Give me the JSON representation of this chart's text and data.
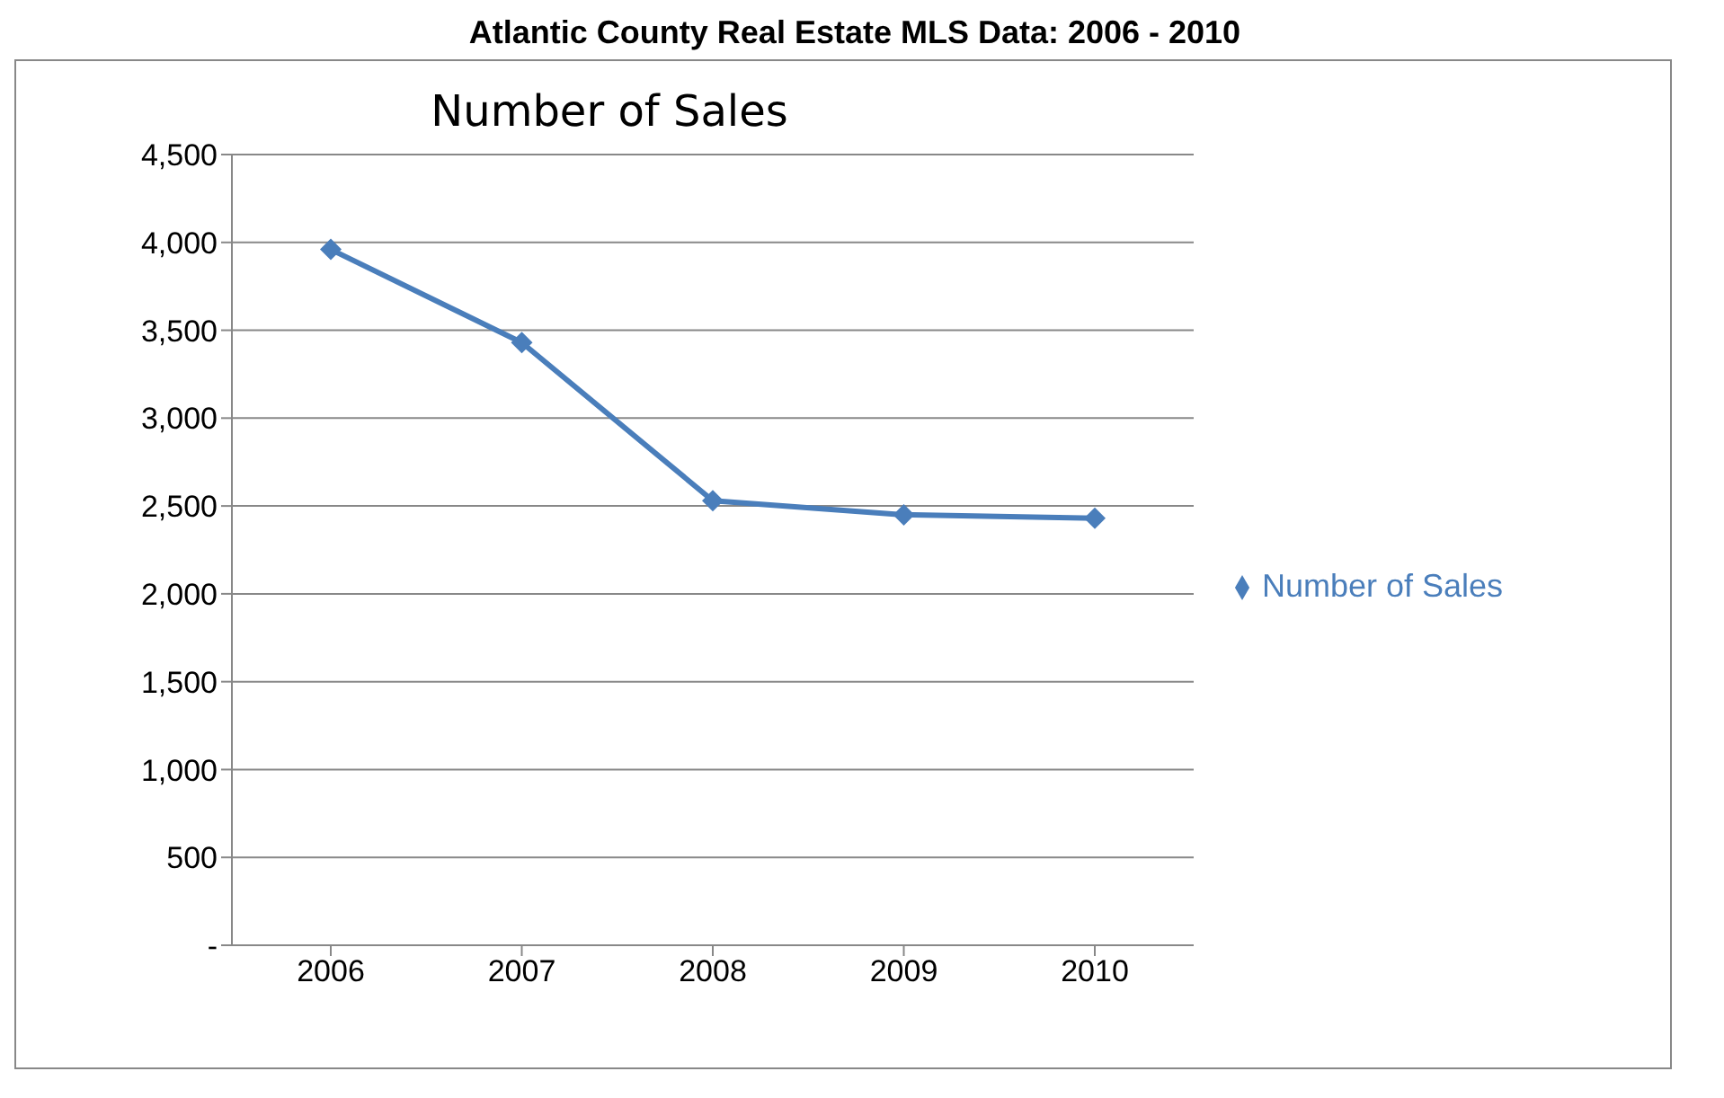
{
  "chart_data": {
    "type": "line",
    "title": "Atlantic County Real Estate MLS Data: 2006 - 2010",
    "subtitle": "Number of Sales",
    "categories": [
      "2006",
      "2007",
      "2008",
      "2009",
      "2010"
    ],
    "series": [
      {
        "name": "Number of Sales",
        "color": "#4a7ebb",
        "values": [
          3960,
          3430,
          2530,
          2450,
          2430
        ]
      }
    ],
    "ylim": [
      0,
      4500
    ],
    "yticks": [
      {
        "value": 0,
        "label": "-"
      },
      {
        "value": 500,
        "label": "500"
      },
      {
        "value": 1000,
        "label": "1,000"
      },
      {
        "value": 1500,
        "label": "1,500"
      },
      {
        "value": 2000,
        "label": "2,000"
      },
      {
        "value": 2500,
        "label": "2,500"
      },
      {
        "value": 3000,
        "label": "3,000"
      },
      {
        "value": 3500,
        "label": "3,500"
      },
      {
        "value": 4000,
        "label": "4,000"
      },
      {
        "value": 4500,
        "label": "4,500"
      }
    ],
    "grid": "y",
    "legend": "right",
    "marker": "diamond",
    "line_style": "solid"
  }
}
